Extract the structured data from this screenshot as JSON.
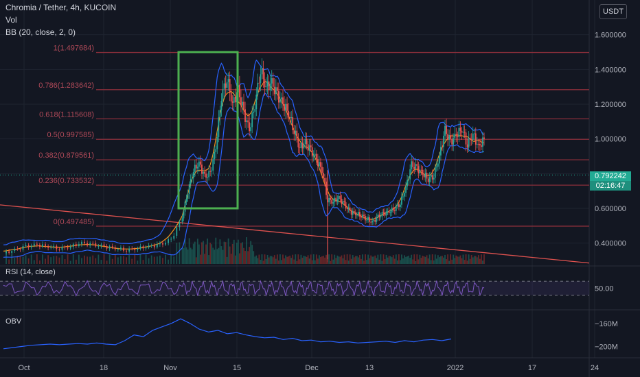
{
  "header": {
    "title": "Chromia / Tether, 4h, KUCOIN",
    "indicators": [
      "Vol",
      "BB (20, close, 2, 0)"
    ],
    "currency_button": "USDT"
  },
  "last_price": {
    "value": "0.792242",
    "countdown": "02:16:47"
  },
  "colors": {
    "background": "#131722",
    "up": "#26a69a",
    "down": "#ef5350",
    "bollinger": "#2962ff",
    "ma": "#f7931a",
    "fib_line": "#8b2f3b",
    "trendline": "#e0524f",
    "highlight_box": "#4caf50",
    "rsi": "#7e57c2",
    "obv": "#2962ff"
  },
  "chart_data": [
    {
      "type": "candlestick",
      "title": "Chromia / Tether, 4h, KUCOIN",
      "x_ticks": [
        "Oct",
        "18",
        "Nov",
        "15",
        "Dec",
        "13",
        "2022",
        "17",
        "24"
      ],
      "y_ticks": [
        "0.400000",
        "0.600000",
        "0.800000",
        "1.000000",
        "1.200000",
        "1.400000",
        "1.600000"
      ],
      "ylim": [
        0.28,
        1.8
      ],
      "fib_levels": [
        {
          "label": "1(1.497684)",
          "value": 1.497684
        },
        {
          "label": "0.786(1.283642)",
          "value": 1.283642
        },
        {
          "label": "0.618(1.115608)",
          "value": 1.115608
        },
        {
          "label": "0.5(0.997585)",
          "value": 0.997585
        },
        {
          "label": "0.382(0.879561)",
          "value": 0.879561
        },
        {
          "label": "0.236(0.733532)",
          "value": 0.733532
        },
        {
          "label": "0(0.497485)",
          "value": 0.497485
        }
      ],
      "trendline": [
        [
          0,
          0.62
        ],
        [
          858,
          0.285
        ]
      ],
      "highlight_box": {
        "x": [
          5,
          13
        ],
        "y": [
          0.6,
          1.5
        ]
      },
      "price_path": [
        [
          0,
          0.34
        ],
        [
          2,
          0.36
        ],
        [
          4,
          0.38
        ],
        [
          6,
          0.39
        ],
        [
          8,
          0.38
        ],
        [
          10,
          0.37
        ],
        [
          12,
          0.38
        ],
        [
          14,
          0.4
        ],
        [
          16,
          0.39
        ],
        [
          18,
          0.38
        ],
        [
          20,
          0.37
        ],
        [
          22,
          0.36
        ],
        [
          24,
          0.37
        ],
        [
          26,
          0.38
        ],
        [
          28,
          0.39
        ],
        [
          30,
          0.42
        ],
        [
          32,
          0.55
        ],
        [
          33,
          0.7
        ],
        [
          34,
          0.82
        ],
        [
          35,
          0.86
        ],
        [
          36,
          0.78
        ],
        [
          37,
          0.8
        ],
        [
          38,
          0.95
        ],
        [
          39,
          1.25
        ],
        [
          40,
          1.35
        ],
        [
          41,
          1.2
        ],
        [
          42,
          1.28
        ],
        [
          43,
          1.15
        ],
        [
          44,
          1.05
        ],
        [
          45,
          1.2
        ],
        [
          46,
          1.4
        ],
        [
          47,
          1.3
        ],
        [
          48,
          1.32
        ],
        [
          49,
          1.25
        ],
        [
          50,
          1.2
        ],
        [
          51,
          1.15
        ],
        [
          52,
          1.05
        ],
        [
          53,
          0.95
        ],
        [
          54,
          0.98
        ],
        [
          55,
          0.93
        ],
        [
          56,
          0.88
        ],
        [
          57,
          0.82
        ],
        [
          58,
          0.65
        ],
        [
          59,
          0.64
        ],
        [
          60,
          0.66
        ],
        [
          61,
          0.62
        ],
        [
          62,
          0.58
        ],
        [
          63,
          0.57
        ],
        [
          64,
          0.56
        ],
        [
          65,
          0.54
        ],
        [
          66,
          0.52
        ],
        [
          67,
          0.55
        ],
        [
          68,
          0.57
        ],
        [
          69,
          0.58
        ],
        [
          70,
          0.6
        ],
        [
          71,
          0.63
        ],
        [
          72,
          0.72
        ],
        [
          73,
          0.85
        ],
        [
          74,
          0.83
        ],
        [
          75,
          0.8
        ],
        [
          76,
          0.77
        ],
        [
          77,
          0.79
        ],
        [
          78,
          0.9
        ],
        [
          79,
          1.05
        ],
        [
          80,
          0.98
        ],
        [
          81,
          1.02
        ],
        [
          82,
          1.06
        ],
        [
          83,
          0.97
        ],
        [
          84,
          1.03
        ],
        [
          85,
          0.95
        ],
        [
          86,
          1.0
        ]
      ]
    },
    {
      "type": "line",
      "title": "RSI (14, close)",
      "y_ticks": [
        "50.00"
      ],
      "bands": [
        70,
        30
      ],
      "ylim": [
        0,
        100
      ]
    },
    {
      "type": "line",
      "title": "OBV",
      "y_ticks": [
        "−160M",
        "−200M"
      ],
      "ylim": [
        -215,
        -140
      ],
      "values": [
        -204,
        -202,
        -200,
        -198,
        -197,
        -196,
        -197,
        -196,
        -195,
        -196,
        -194,
        -196,
        -197,
        -190,
        -180,
        -183,
        -172,
        -166,
        -160,
        -152,
        -160,
        -170,
        -175,
        -172,
        -178,
        -176,
        -180,
        -183,
        -185,
        -184,
        -188,
        -186,
        -190,
        -189,
        -192,
        -191,
        -193,
        -192,
        -194,
        -193,
        -192,
        -191,
        -193,
        -190,
        -192,
        -189,
        -188,
        -190,
        -187
      ]
    }
  ]
}
